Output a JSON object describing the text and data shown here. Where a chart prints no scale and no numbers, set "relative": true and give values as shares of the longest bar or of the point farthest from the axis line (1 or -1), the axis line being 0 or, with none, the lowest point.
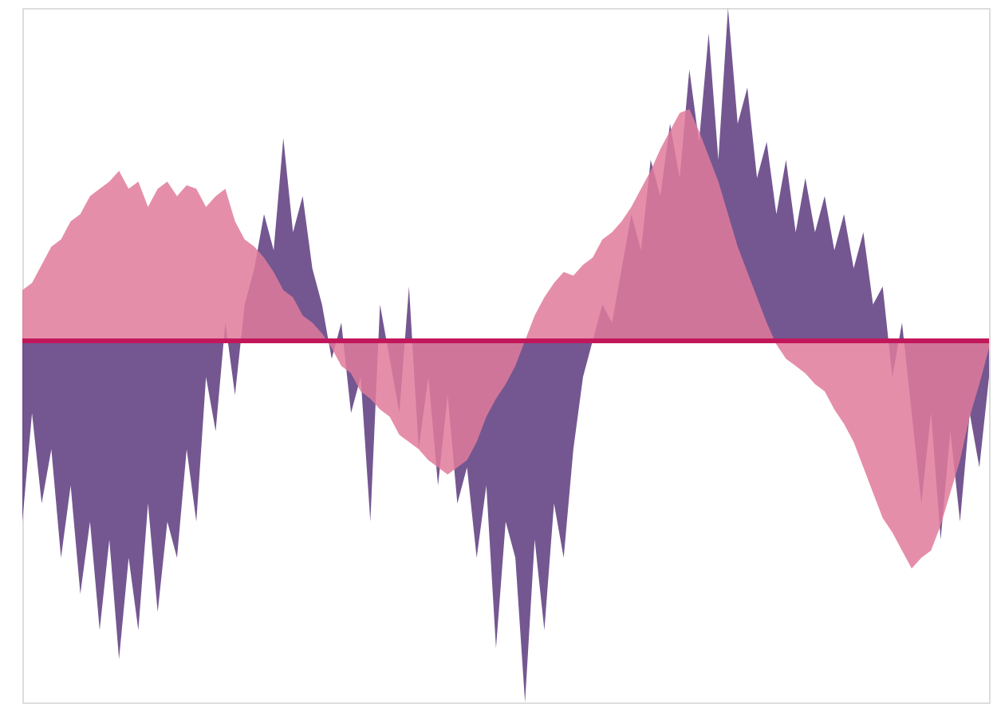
{
  "chart_data": {
    "type": "area",
    "relative": true,
    "grid": false,
    "ref_lines": [
      {
        "axis": "y",
        "value": 0,
        "color": "#c2185b"
      }
    ],
    "tick_labels": false,
    "categories": [
      null,
      null,
      null,
      null,
      null,
      null,
      null,
      null,
      null,
      null,
      null,
      null,
      null,
      null,
      null,
      null,
      null,
      null,
      null,
      null,
      null,
      null,
      null,
      null,
      null,
      null,
      null,
      null,
      null,
      null,
      null,
      null,
      null,
      null,
      null,
      null,
      null,
      null,
      null,
      null,
      null,
      null,
      null,
      null,
      null,
      null,
      null,
      null,
      null,
      null,
      null,
      null,
      null,
      null,
      null,
      null,
      null,
      null,
      null,
      null,
      null,
      null,
      null,
      null,
      null,
      null,
      null,
      null,
      null,
      null,
      null,
      null,
      null,
      null,
      null,
      null,
      null,
      null,
      null,
      null,
      null,
      null,
      null,
      null,
      null,
      null,
      null,
      null,
      null,
      null,
      null,
      null,
      null,
      null,
      null,
      null,
      null,
      null,
      null,
      null,
      null
    ],
    "series": [
      {
        "color": "#5c3a7e",
        "values": [
          -0.5,
          -0.2,
          -0.45,
          -0.3,
          -0.6,
          -0.4,
          -0.7,
          -0.5,
          -0.8,
          -0.55,
          -0.88,
          -0.6,
          -0.8,
          -0.45,
          -0.75,
          -0.5,
          -0.6,
          -0.3,
          -0.5,
          -0.1,
          -0.25,
          0.05,
          -0.15,
          0.1,
          0.2,
          0.35,
          0.25,
          0.56,
          0.3,
          0.4,
          0.2,
          0.1,
          -0.05,
          0.05,
          -0.2,
          -0.1,
          -0.5,
          0.1,
          -0.05,
          -0.2,
          0.15,
          -0.3,
          -0.1,
          -0.4,
          -0.15,
          -0.45,
          -0.35,
          -0.6,
          -0.4,
          -0.85,
          -0.5,
          -0.6,
          -1.0,
          -0.55,
          -0.8,
          -0.45,
          -0.6,
          -0.3,
          -0.1,
          0.0,
          0.1,
          0.05,
          0.2,
          0.35,
          0.25,
          0.5,
          0.4,
          0.6,
          0.45,
          0.75,
          0.55,
          0.85,
          0.5,
          0.92,
          0.6,
          0.7,
          0.45,
          0.55,
          0.35,
          0.5,
          0.3,
          0.45,
          0.3,
          0.4,
          0.25,
          0.35,
          0.2,
          0.3,
          0.1,
          0.15,
          -0.1,
          0.05,
          -0.2,
          -0.45,
          -0.2,
          -0.55,
          -0.25,
          -0.5,
          -0.2,
          -0.35,
          -0.1
        ]
      },
      {
        "color": "#e07a9b",
        "values": [
          0.14,
          0.16,
          0.21,
          0.26,
          0.28,
          0.33,
          0.35,
          0.4,
          0.42,
          0.44,
          0.47,
          0.42,
          0.44,
          0.37,
          0.42,
          0.44,
          0.4,
          0.43,
          0.42,
          0.37,
          0.4,
          0.42,
          0.33,
          0.28,
          0.26,
          0.23,
          0.19,
          0.14,
          0.12,
          0.07,
          0.05,
          0.02,
          -0.02,
          -0.07,
          -0.09,
          -0.14,
          -0.16,
          -0.19,
          -0.21,
          -0.26,
          -0.28,
          -0.3,
          -0.33,
          -0.35,
          -0.37,
          -0.35,
          -0.33,
          -0.28,
          -0.21,
          -0.16,
          -0.12,
          -0.07,
          0.0,
          0.07,
          0.12,
          0.16,
          0.19,
          0.18,
          0.21,
          0.23,
          0.28,
          0.3,
          0.33,
          0.37,
          0.42,
          0.47,
          0.53,
          0.58,
          0.63,
          0.64,
          0.58,
          0.51,
          0.44,
          0.35,
          0.26,
          0.19,
          0.12,
          0.05,
          -0.01,
          -0.05,
          -0.07,
          -0.09,
          -0.12,
          -0.14,
          -0.19,
          -0.23,
          -0.28,
          -0.35,
          -0.42,
          -0.49,
          -0.53,
          -0.58,
          -0.63,
          -0.6,
          -0.58,
          -0.51,
          -0.42,
          -0.33,
          -0.21,
          -0.12,
          -0.02
        ]
      }
    ]
  }
}
